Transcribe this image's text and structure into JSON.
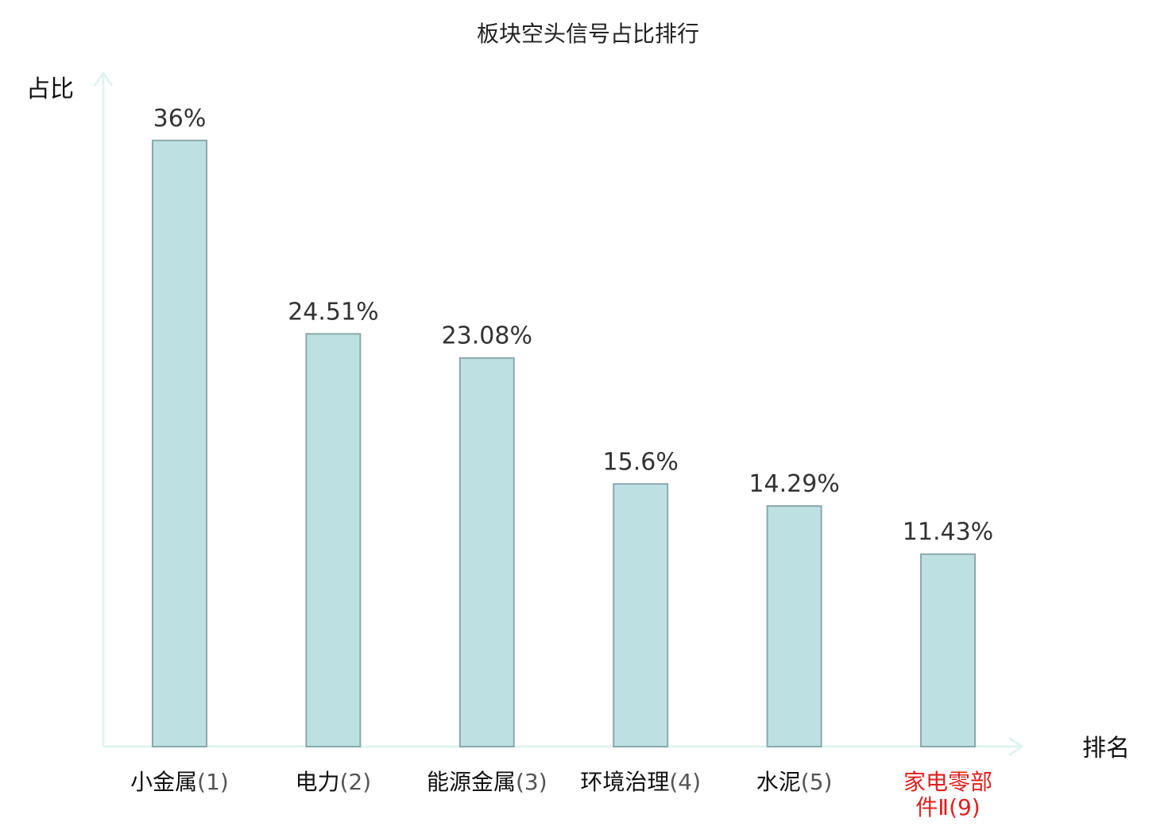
{
  "chart_data": {
    "type": "bar",
    "title": "板块空头信号占比排行",
    "ylabel": "占比",
    "xlabel": "排名",
    "ylim": [
      0,
      40
    ],
    "grid": false,
    "legend": "none",
    "bar_color": "#bde1e3",
    "bar_edge_color": "#8aa8ab",
    "axis_color": "#e0f3f0",
    "highlight_color": "#e02020",
    "categories": [
      {
        "name": "小金属",
        "rank": "(1)",
        "highlight": false
      },
      {
        "name": "电力",
        "rank": "(2)",
        "highlight": false
      },
      {
        "name": "能源金属",
        "rank": "(3)",
        "highlight": false
      },
      {
        "name": "环境治理",
        "rank": "(4)",
        "highlight": false
      },
      {
        "name": "水泥",
        "rank": "(5)",
        "highlight": false
      },
      {
        "name": "家电零部件Ⅱ",
        "rank": "(9)",
        "highlight": true
      }
    ],
    "values": [
      36,
      24.51,
      23.08,
      15.6,
      14.29,
      11.43
    ],
    "value_labels": [
      "36%",
      "24.51%",
      "23.08%",
      "15.6%",
      "14.29%",
      "11.43%"
    ]
  }
}
